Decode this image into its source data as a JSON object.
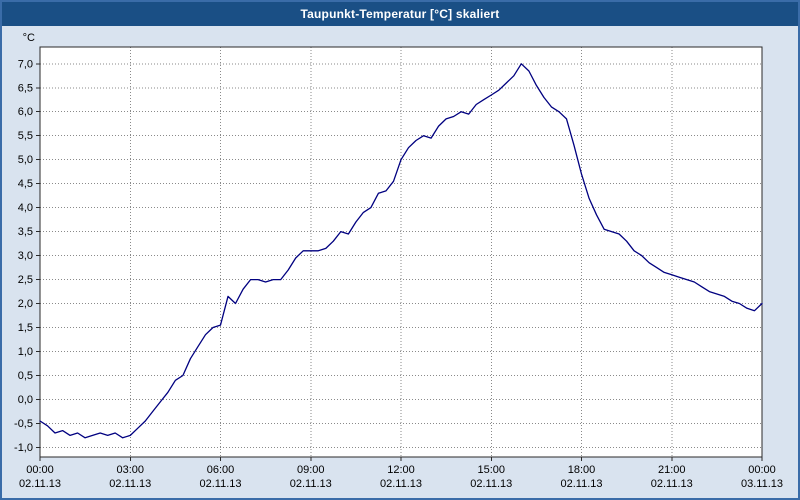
{
  "window": {
    "title": "Taupunkt-Temperatur [°C] skaliert"
  },
  "colors": {
    "titlebar": "#1a4f85",
    "background": "#d9e3ef",
    "plot_background": "#ffffff",
    "grid": "#8a8a8a",
    "frame": "#2a2a2a",
    "line": "#000080",
    "title_text": "#ffffff",
    "axis_text": "#000000"
  },
  "chart_data": {
    "type": "line",
    "title": "Taupunkt-Temperatur [°C] skaliert",
    "ylabel": "°C",
    "xlabel": "",
    "legend": "none",
    "grid": "dotted",
    "x_range_hours": [
      0,
      24
    ],
    "ylim": [
      -1.0,
      7.0
    ],
    "y_tick_step": 0.5,
    "y_tick_labels": [
      "7,0",
      "6,5",
      "6,0",
      "5,5",
      "5,0",
      "4,5",
      "4,0",
      "3,5",
      "3,0",
      "2,5",
      "2,0",
      "1,5",
      "1,0",
      "0,5",
      "0,0",
      "-0,5",
      "-1,0"
    ],
    "x_ticks": [
      {
        "hour": 0,
        "time": "00:00",
        "date": "02.11.13"
      },
      {
        "hour": 3,
        "time": "03:00",
        "date": "02.11.13"
      },
      {
        "hour": 6,
        "time": "06:00",
        "date": "02.11.13"
      },
      {
        "hour": 9,
        "time": "09:00",
        "date": "02.11.13"
      },
      {
        "hour": 12,
        "time": "12:00",
        "date": "02.11.13"
      },
      {
        "hour": 15,
        "time": "15:00",
        "date": "02.11.13"
      },
      {
        "hour": 18,
        "time": "18:00",
        "date": "02.11.13"
      },
      {
        "hour": 21,
        "time": "21:00",
        "date": "02.11.13"
      },
      {
        "hour": 24,
        "time": "00:00",
        "date": "03.11.13"
      }
    ],
    "series": [
      {
        "name": "Taupunkt-Temperatur",
        "color": "#000080",
        "x_start_hours": 0,
        "x_step_hours": 0.25,
        "values": [
          -0.45,
          -0.55,
          -0.7,
          -0.65,
          -0.75,
          -0.7,
          -0.8,
          -0.75,
          -0.7,
          -0.75,
          -0.7,
          -0.8,
          -0.75,
          -0.6,
          -0.45,
          -0.25,
          -0.05,
          0.15,
          0.4,
          0.5,
          0.85,
          1.1,
          1.35,
          1.5,
          1.55,
          2.15,
          2.0,
          2.3,
          2.5,
          2.5,
          2.45,
          2.5,
          2.5,
          2.7,
          2.95,
          3.1,
          3.1,
          3.1,
          3.15,
          3.3,
          3.5,
          3.45,
          3.7,
          3.9,
          4.0,
          4.3,
          4.35,
          4.55,
          5.0,
          5.25,
          5.4,
          5.5,
          5.45,
          5.7,
          5.85,
          5.9,
          6.0,
          5.95,
          6.15,
          6.25,
          6.35,
          6.45,
          6.6,
          6.75,
          7.0,
          6.85,
          6.55,
          6.3,
          6.1,
          6.0,
          5.85,
          5.3,
          4.7,
          4.2,
          3.85,
          3.55,
          3.5,
          3.45,
          3.3,
          3.1,
          3.0,
          2.85,
          2.75,
          2.65,
          2.6,
          2.55,
          2.5,
          2.45,
          2.35,
          2.25,
          2.2,
          2.15,
          2.05,
          2.0,
          1.9,
          1.85,
          2.0
        ]
      }
    ]
  }
}
